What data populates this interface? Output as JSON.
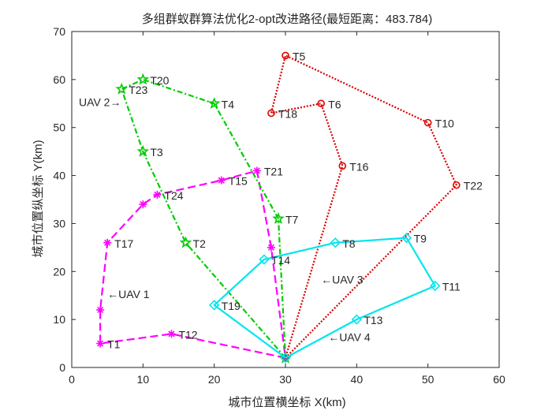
{
  "chart_data": {
    "type": "line",
    "title": "多组群蚁群算法优化2-opt改进路径(最短距离：483.784)",
    "xlabel": "城市位置横坐标 X(km)",
    "ylabel": "城市位置纵坐标 Y(km)",
    "xlim": [
      0,
      60
    ],
    "ylim": [
      0,
      70
    ],
    "xticks": [
      0,
      10,
      20,
      30,
      40,
      50,
      60
    ],
    "yticks": [
      0,
      10,
      20,
      30,
      40,
      50,
      60,
      70
    ],
    "grid": false,
    "depot": {
      "x": 30,
      "y": 2
    },
    "points": [
      {
        "id": "T1",
        "x": 4,
        "y": 5,
        "label": "T1"
      },
      {
        "id": "T2",
        "x": 16,
        "y": 26,
        "label": "T2"
      },
      {
        "id": "T3",
        "x": 10,
        "y": 45,
        "label": "T3"
      },
      {
        "id": "T4",
        "x": 20,
        "y": 55,
        "label": "T4"
      },
      {
        "id": "T5",
        "x": 30,
        "y": 65,
        "label": "T5"
      },
      {
        "id": "T6",
        "x": 35,
        "y": 55,
        "label": "T6"
      },
      {
        "id": "T7",
        "x": 29,
        "y": 31,
        "label": "T7"
      },
      {
        "id": "T8",
        "x": 37,
        "y": 26,
        "label": "T8"
      },
      {
        "id": "T9",
        "x": 47,
        "y": 27,
        "label": "T9"
      },
      {
        "id": "T10",
        "x": 50,
        "y": 51,
        "label": "T10"
      },
      {
        "id": "T11",
        "x": 51,
        "y": 17,
        "label": "T11"
      },
      {
        "id": "T12",
        "x": 14,
        "y": 7,
        "label": "T12"
      },
      {
        "id": "T13",
        "x": 40,
        "y": 10,
        "label": "T13"
      },
      {
        "id": "T14",
        "x": 27,
        "y": 22.5,
        "label": "T14"
      },
      {
        "id": "T15",
        "x": 21,
        "y": 39,
        "label": "T15"
      },
      {
        "id": "T16",
        "x": 38,
        "y": 42,
        "label": "T16"
      },
      {
        "id": "T17",
        "x": 5,
        "y": 26,
        "label": "T17"
      },
      {
        "id": "T18",
        "x": 28,
        "y": 53,
        "label": "T18"
      },
      {
        "id": "T19",
        "x": 20,
        "y": 13,
        "label": "T19"
      },
      {
        "id": "T20",
        "x": 10,
        "y": 60,
        "label": "T20"
      },
      {
        "id": "T21",
        "x": 26,
        "y": 41,
        "label": "T21"
      },
      {
        "id": "T22",
        "x": 54,
        "y": 38,
        "label": "T22"
      },
      {
        "id": "T23",
        "x": 7,
        "y": 58,
        "label": "T23"
      },
      {
        "id": "T24",
        "x": 12,
        "y": 36,
        "label": "T24"
      }
    ],
    "series": [
      {
        "key": "uav1",
        "color": "#ff00ff",
        "dash": "10 5",
        "marker": "asterisk",
        "route": [
          [
            30,
            2
          ],
          [
            14,
            7
          ],
          [
            4,
            5
          ],
          [
            4,
            12
          ],
          [
            5,
            26
          ],
          [
            10,
            34
          ],
          [
            12,
            36
          ],
          [
            21,
            39
          ],
          [
            26,
            41
          ],
          [
            28,
            25
          ],
          [
            30,
            2
          ]
        ]
      },
      {
        "key": "uav2",
        "color": "#00cc00",
        "dash": "7 3 2 3",
        "marker": "pentagram",
        "route": [
          [
            30,
            2
          ],
          [
            16,
            26
          ],
          [
            10,
            45
          ],
          [
            7,
            58
          ],
          [
            10,
            60
          ],
          [
            20,
            55
          ],
          [
            29,
            31
          ],
          [
            30,
            2
          ]
        ]
      },
      {
        "key": "uav3",
        "color": "#dd0000",
        "dash": "2 2",
        "marker": "circle",
        "route": [
          [
            30,
            2
          ],
          [
            54,
            38
          ],
          [
            50,
            51
          ],
          [
            30,
            65
          ],
          [
            28,
            53
          ],
          [
            35,
            55
          ],
          [
            38,
            42
          ],
          [
            30,
            2
          ]
        ]
      },
      {
        "key": "uav4",
        "color": "#00e5ee",
        "dash": "",
        "marker": "diamond",
        "route": [
          [
            30,
            2
          ],
          [
            40,
            10
          ],
          [
            51,
            17
          ],
          [
            47,
            27
          ],
          [
            37,
            26
          ],
          [
            27,
            22.5
          ],
          [
            20,
            13
          ],
          [
            30,
            2
          ]
        ]
      }
    ],
    "annotations": [
      {
        "key": "uav1",
        "text": "←UAV 1",
        "x": 5,
        "y": 14.5
      },
      {
        "key": "uav2",
        "text": "UAV 2→",
        "x": 1,
        "y": 54.5
      },
      {
        "key": "uav3",
        "text": "←UAV 3",
        "x": 35,
        "y": 17.5
      },
      {
        "key": "uav4",
        "text": "←UAV 4",
        "x": 36,
        "y": 5.5
      }
    ]
  }
}
